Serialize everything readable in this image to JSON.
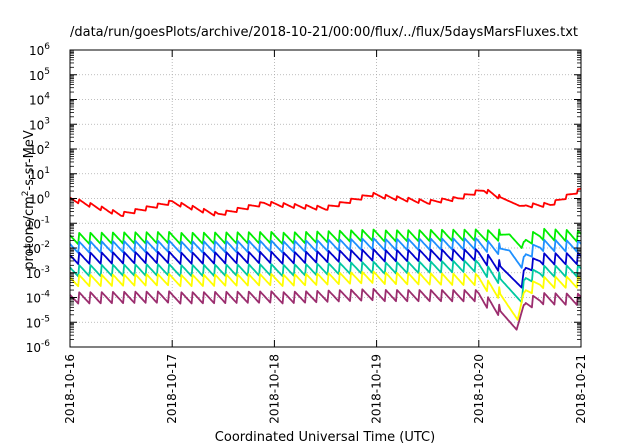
{
  "chart_data": {
    "type": "line",
    "title": "/data/run/goesPlots/archive/2018-10-21/00:00/flux/../flux/5daysMarsFluxes.txt",
    "xlabel": "Coordinated Universal Time (UTC)",
    "ylabel_main": "protons/cm",
    "ylabel_sup": "2",
    "ylabel_tail": "-s-sr-MeV",
    "x_ticks": [
      "2018-10-16",
      "2018-10-17",
      "2018-10-18",
      "2018-10-19",
      "2018-10-20",
      "2018-10-21"
    ],
    "y_scale": "log",
    "ylim_exp": [
      -6,
      6
    ],
    "y_tick_base": "10",
    "y_tick_exponents": [
      "-6",
      "-5",
      "-4",
      "-3",
      "-2",
      "-1",
      "0",
      "1",
      "2",
      "3",
      "4",
      "5",
      "6"
    ],
    "xlim_days": [
      0,
      5
    ],
    "grid": true,
    "series": [
      {
        "color": "#ff0000",
        "knots": [
          [
            0.0,
            0.0
          ],
          [
            0.5,
            -0.65
          ],
          [
            1.0,
            -0.15
          ],
          [
            1.45,
            -0.65
          ],
          [
            1.9,
            -0.2
          ],
          [
            2.5,
            -0.4
          ],
          [
            2.95,
            0.15
          ],
          [
            3.5,
            -0.15
          ],
          [
            3.8,
            0.0
          ],
          [
            4.05,
            0.35
          ],
          [
            4.4,
            -0.3
          ],
          [
            4.7,
            -0.25
          ],
          [
            5.0,
            0.35
          ]
        ]
      },
      {
        "color": "#00ee00",
        "knots": [
          [
            0.0,
            -1.6
          ],
          [
            1.0,
            -1.6
          ],
          [
            2.0,
            -1.6
          ],
          [
            3.0,
            -1.5
          ],
          [
            3.5,
            -1.5
          ],
          [
            4.0,
            -1.5
          ],
          [
            4.3,
            -1.45
          ],
          [
            4.42,
            -2.0
          ],
          [
            4.44,
            -1.75
          ],
          [
            4.6,
            -1.45
          ],
          [
            5.0,
            -1.55
          ]
        ]
      },
      {
        "color": "#1e90ff",
        "knots": [
          [
            0.0,
            -1.95
          ],
          [
            1.0,
            -1.95
          ],
          [
            2.0,
            -1.95
          ],
          [
            3.0,
            -1.85
          ],
          [
            4.0,
            -1.85
          ],
          [
            4.3,
            -2.1
          ],
          [
            4.42,
            -2.8
          ],
          [
            4.44,
            -2.35
          ],
          [
            4.6,
            -1.9
          ],
          [
            5.0,
            -1.95
          ]
        ]
      },
      {
        "color": "#0000cd",
        "knots": [
          [
            0.0,
            -2.4
          ],
          [
            1.0,
            -2.4
          ],
          [
            2.0,
            -2.4
          ],
          [
            3.0,
            -2.3
          ],
          [
            4.0,
            -2.3
          ],
          [
            4.2,
            -2.7
          ],
          [
            4.42,
            -3.6
          ],
          [
            4.44,
            -2.9
          ],
          [
            4.6,
            -2.45
          ],
          [
            5.0,
            -2.45
          ]
        ]
      },
      {
        "color": "#00c8a0",
        "knots": [
          [
            0.0,
            -2.9
          ],
          [
            1.0,
            -2.9
          ],
          [
            2.0,
            -2.9
          ],
          [
            3.0,
            -2.8
          ],
          [
            4.0,
            -2.75
          ],
          [
            4.2,
            -3.2
          ],
          [
            4.42,
            -4.2
          ],
          [
            4.44,
            -3.3
          ],
          [
            4.6,
            -2.95
          ],
          [
            5.0,
            -2.95
          ]
        ]
      },
      {
        "color": "#ffff00",
        "knots": [
          [
            0.0,
            -3.3
          ],
          [
            1.0,
            -3.3
          ],
          [
            2.0,
            -3.3
          ],
          [
            3.0,
            -3.2
          ],
          [
            4.0,
            -3.3
          ],
          [
            4.2,
            -3.8
          ],
          [
            4.38,
            -4.9
          ],
          [
            4.44,
            -3.8
          ],
          [
            4.6,
            -3.4
          ],
          [
            5.0,
            -3.4
          ]
        ]
      },
      {
        "color": "#9b2d6e",
        "knots": [
          [
            0.0,
            -4.0
          ],
          [
            1.0,
            -4.0
          ],
          [
            2.0,
            -4.0
          ],
          [
            3.0,
            -3.9
          ],
          [
            4.0,
            -3.95
          ],
          [
            4.2,
            -4.5
          ],
          [
            4.37,
            -5.3
          ],
          [
            4.44,
            -4.3
          ],
          [
            4.6,
            -4.05
          ],
          [
            5.0,
            -4.1
          ]
        ]
      }
    ]
  }
}
